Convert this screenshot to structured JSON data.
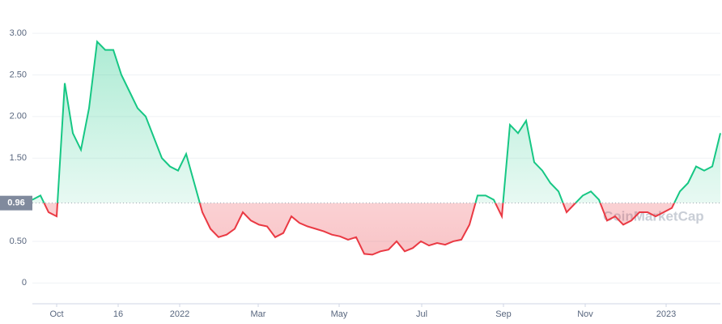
{
  "chart_data": {
    "type": "line",
    "baseline": {
      "value": 0.96,
      "label": "0.96"
    },
    "watermark": "CoinMarketCap",
    "up_color": "#16c784",
    "down_color": "#ea3943",
    "ylim": [
      -0.25,
      3.4
    ],
    "yticks": [
      0,
      {
        "value": 0.5,
        "label": "0.50"
      },
      {
        "value": 1.5,
        "label": "1.50"
      },
      {
        "value": 2,
        "label": "2.00"
      },
      {
        "value": 2.5,
        "label": "2.50"
      },
      {
        "value": 3,
        "label": "3.00"
      }
    ],
    "xlim": [
      0,
      85
    ],
    "xticks": [
      {
        "value": 3,
        "label": "Oct"
      },
      {
        "value": 10.6,
        "label": "16"
      },
      {
        "value": 18.2,
        "label": "2022"
      },
      {
        "value": 27.9,
        "label": "Mar"
      },
      {
        "value": 37.9,
        "label": "May"
      },
      {
        "value": 48.1,
        "label": "Jul"
      },
      {
        "value": 58.2,
        "label": "Sep"
      },
      {
        "value": 68.3,
        "label": "Nov"
      },
      {
        "value": 78.3,
        "label": "2023"
      }
    ],
    "grid": true,
    "values": [
      1.0,
      1.05,
      0.85,
      0.8,
      2.4,
      1.8,
      1.6,
      2.1,
      2.9,
      2.8,
      2.8,
      2.5,
      2.3,
      2.1,
      2.0,
      1.75,
      1.5,
      1.4,
      1.35,
      1.55,
      1.2,
      0.85,
      0.65,
      0.55,
      0.58,
      0.65,
      0.85,
      0.75,
      0.7,
      0.68,
      0.55,
      0.6,
      0.8,
      0.72,
      0.68,
      0.65,
      0.62,
      0.58,
      0.56,
      0.52,
      0.55,
      0.35,
      0.34,
      0.38,
      0.4,
      0.5,
      0.38,
      0.42,
      0.5,
      0.45,
      0.48,
      0.46,
      0.5,
      0.52,
      0.7,
      1.05,
      1.05,
      1.0,
      0.8,
      1.9,
      1.8,
      1.95,
      1.45,
      1.35,
      1.2,
      1.1,
      0.85,
      0.95,
      1.05,
      1.1,
      1.0,
      0.75,
      0.8,
      0.7,
      0.75,
      0.85,
      0.85,
      0.8,
      0.85,
      0.9,
      1.1,
      1.2,
      1.4,
      1.35,
      1.4,
      1.8
    ]
  }
}
